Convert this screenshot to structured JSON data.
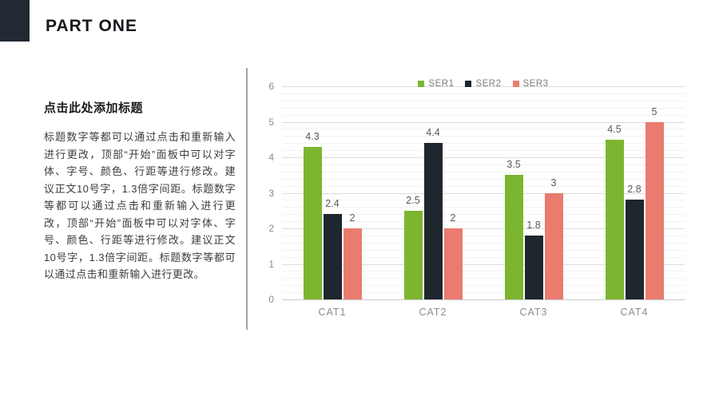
{
  "slide": {
    "kicker": "PART ONE",
    "panel": {
      "title": "点击此处添加标题",
      "body": "标题数字等都可以通过点击和重新输入进行更改，顶部“开始”面板中可以对字体、字号、颜色、行距等进行修改。建议正文10号字，1.3倍字间距。标题数字等都可以通过点击和重新输入进行更改，顶部“开始”面板中可以对字体、字号、颜色、行距等进行修改。建议正文10号字，1.3倍字间距。标题数字等都可以通过点击和重新输入进行更改。"
    }
  },
  "colors": {
    "accent_dark": "#212a33",
    "series1_green": "#7cb52f",
    "series2_dark": "#1e262e",
    "series3_salmon": "#e97b6f"
  },
  "chart_data": {
    "type": "bar",
    "categories": [
      "CAT1",
      "CAT2",
      "CAT3",
      "CAT4"
    ],
    "series": [
      {
        "name": "SER1",
        "color": "#7cb52f",
        "values": [
          4.3,
          2.5,
          3.5,
          4.5
        ]
      },
      {
        "name": "SER2",
        "color": "#1e262e",
        "values": [
          2.4,
          4.4,
          1.8,
          2.8
        ]
      },
      {
        "name": "SER3",
        "color": "#e97b6f",
        "values": [
          2,
          2,
          3,
          5
        ]
      }
    ],
    "title": "",
    "xlabel": "",
    "ylabel": "",
    "ylim": [
      0,
      6
    ],
    "y_ticks": [
      0,
      1,
      2,
      3,
      4,
      5,
      6
    ],
    "y_minor_step": 0.2,
    "grid": true,
    "legend_position": "top-center",
    "data_labels_shown": true
  }
}
